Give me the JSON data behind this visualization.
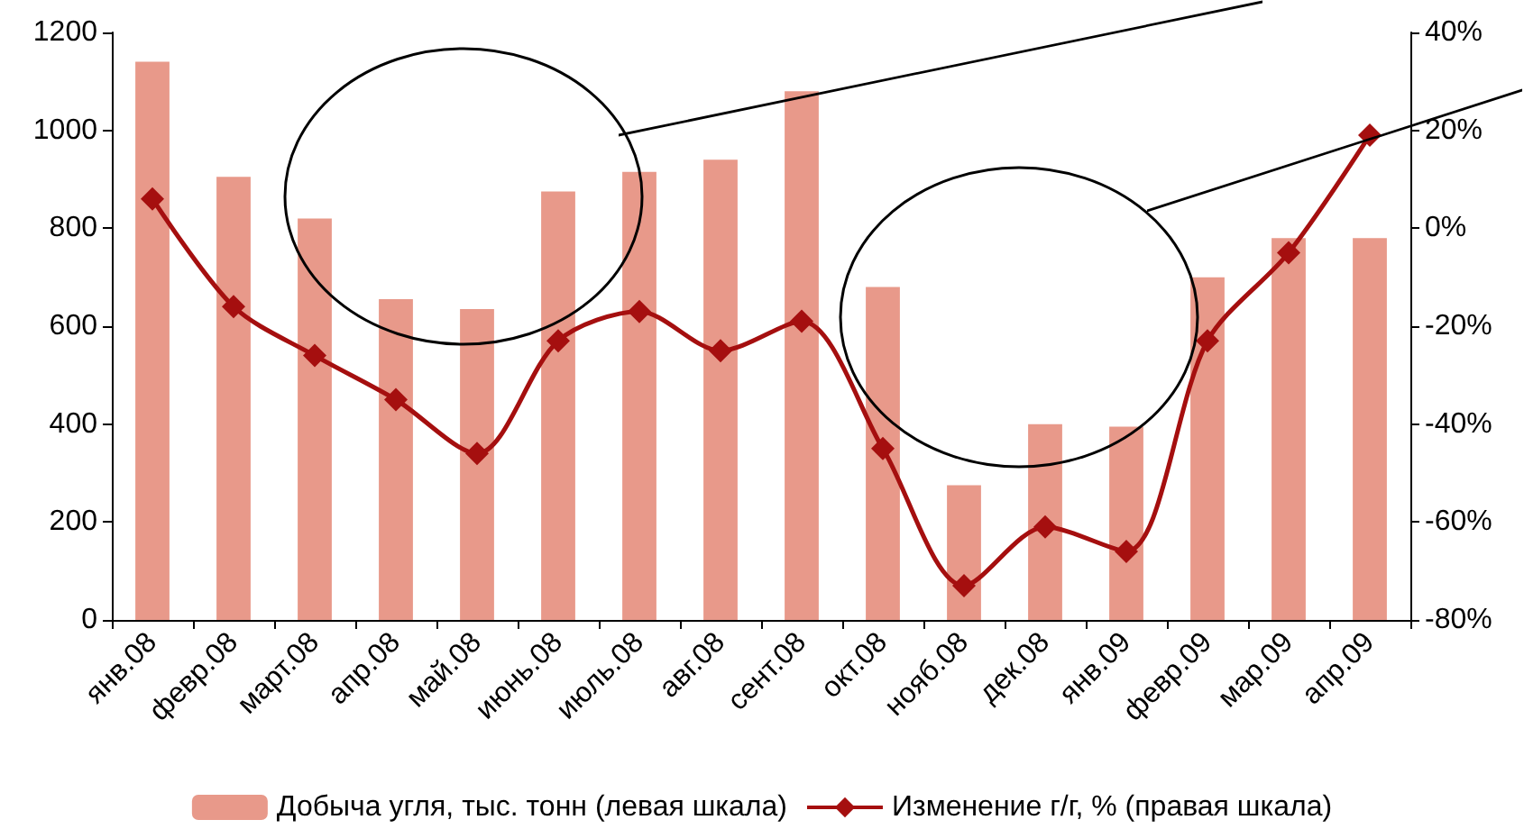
{
  "chart_data": {
    "type": "bar",
    "categories": [
      "янв.08",
      "февр.08",
      "март.08",
      "апр.08",
      "май.08",
      "июнь.08",
      "июль.08",
      "авг.08",
      "сент.08",
      "окт.08",
      "нояб.08",
      "дек.08",
      "янв.09",
      "февр.09",
      "мар.09",
      "апр.09"
    ],
    "series": [
      {
        "name": "Добыча угля, тыс. тонн (левая шкала)",
        "color": "#e8998a",
        "values": [
          1140,
          905,
          820,
          655,
          635,
          875,
          915,
          940,
          1080,
          680,
          275,
          400,
          395,
          700,
          780,
          780
        ]
      },
      {
        "name": "Изменение г/г, % (правая шкала)",
        "type": "line",
        "axis": "y2",
        "color": "#a50f0f",
        "marker": "diamond",
        "values": [
          6,
          -16,
          -26,
          -35,
          -46,
          -23,
          -17,
          -25,
          -19,
          -45,
          -73,
          -61,
          -66,
          -23,
          -5,
          19
        ]
      }
    ],
    "ylim": [
      0,
      1200
    ],
    "yticks": [
      0,
      200,
      400,
      600,
      800,
      1000,
      1200
    ],
    "y2lim": [
      -80,
      40
    ],
    "y2ticks": [
      {
        "value": -80,
        "label": "-80%"
      },
      {
        "value": -60,
        "label": "-60%"
      },
      {
        "value": -40,
        "label": "-40%"
      },
      {
        "value": -20,
        "label": "-20%"
      },
      {
        "value": 0,
        "label": "0%"
      },
      {
        "value": 20,
        "label": "20%"
      },
      {
        "value": 40,
        "label": "40%"
      }
    ],
    "grid": false,
    "legend": "bottom"
  }
}
